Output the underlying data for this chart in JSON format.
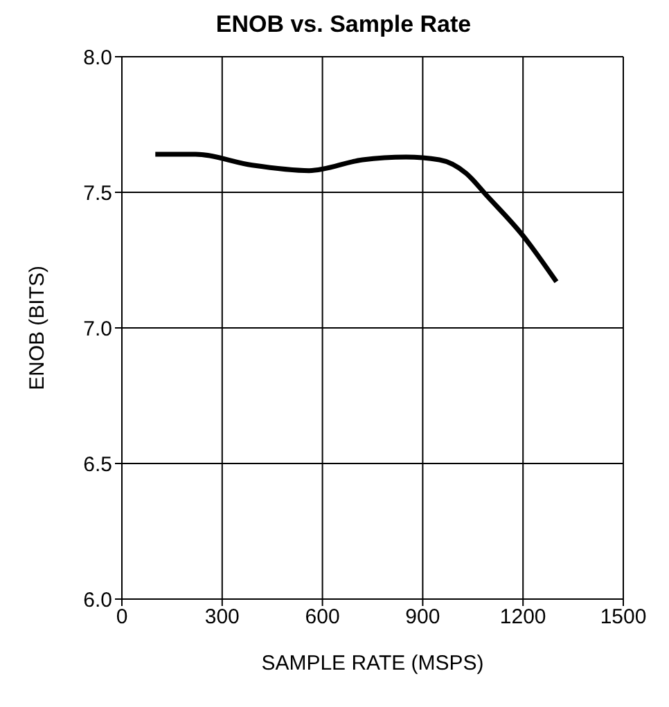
{
  "chart_data": {
    "type": "line",
    "title": "ENOB vs. Sample Rate",
    "xlabel": "SAMPLE RATE (MSPS)",
    "ylabel": "ENOB (BITS)",
    "series": [
      {
        "color": "#000000",
        "x": [
          100,
          220,
          390,
          560,
          720,
          850,
          950,
          1030,
          1090,
          1200,
          1300
        ],
        "values": [
          7.64,
          7.64,
          7.6,
          7.58,
          7.62,
          7.63,
          7.62,
          7.57,
          7.49,
          7.34,
          7.17
        ]
      }
    ],
    "xlim": [
      0,
      1500
    ],
    "xticks": [
      0,
      300,
      600,
      900,
      1200,
      1500
    ],
    "ylim": [
      6,
      8
    ],
    "yticks": [
      {
        "value": 6,
        "label": "6.0"
      },
      {
        "value": 6.5,
        "label": "6.5"
      },
      {
        "value": 7,
        "label": "7.0"
      },
      {
        "value": 7.5,
        "label": "7.5"
      },
      {
        "value": 8,
        "label": "8.0"
      }
    ],
    "grid": true,
    "marker": "none",
    "line_style": "solid"
  }
}
